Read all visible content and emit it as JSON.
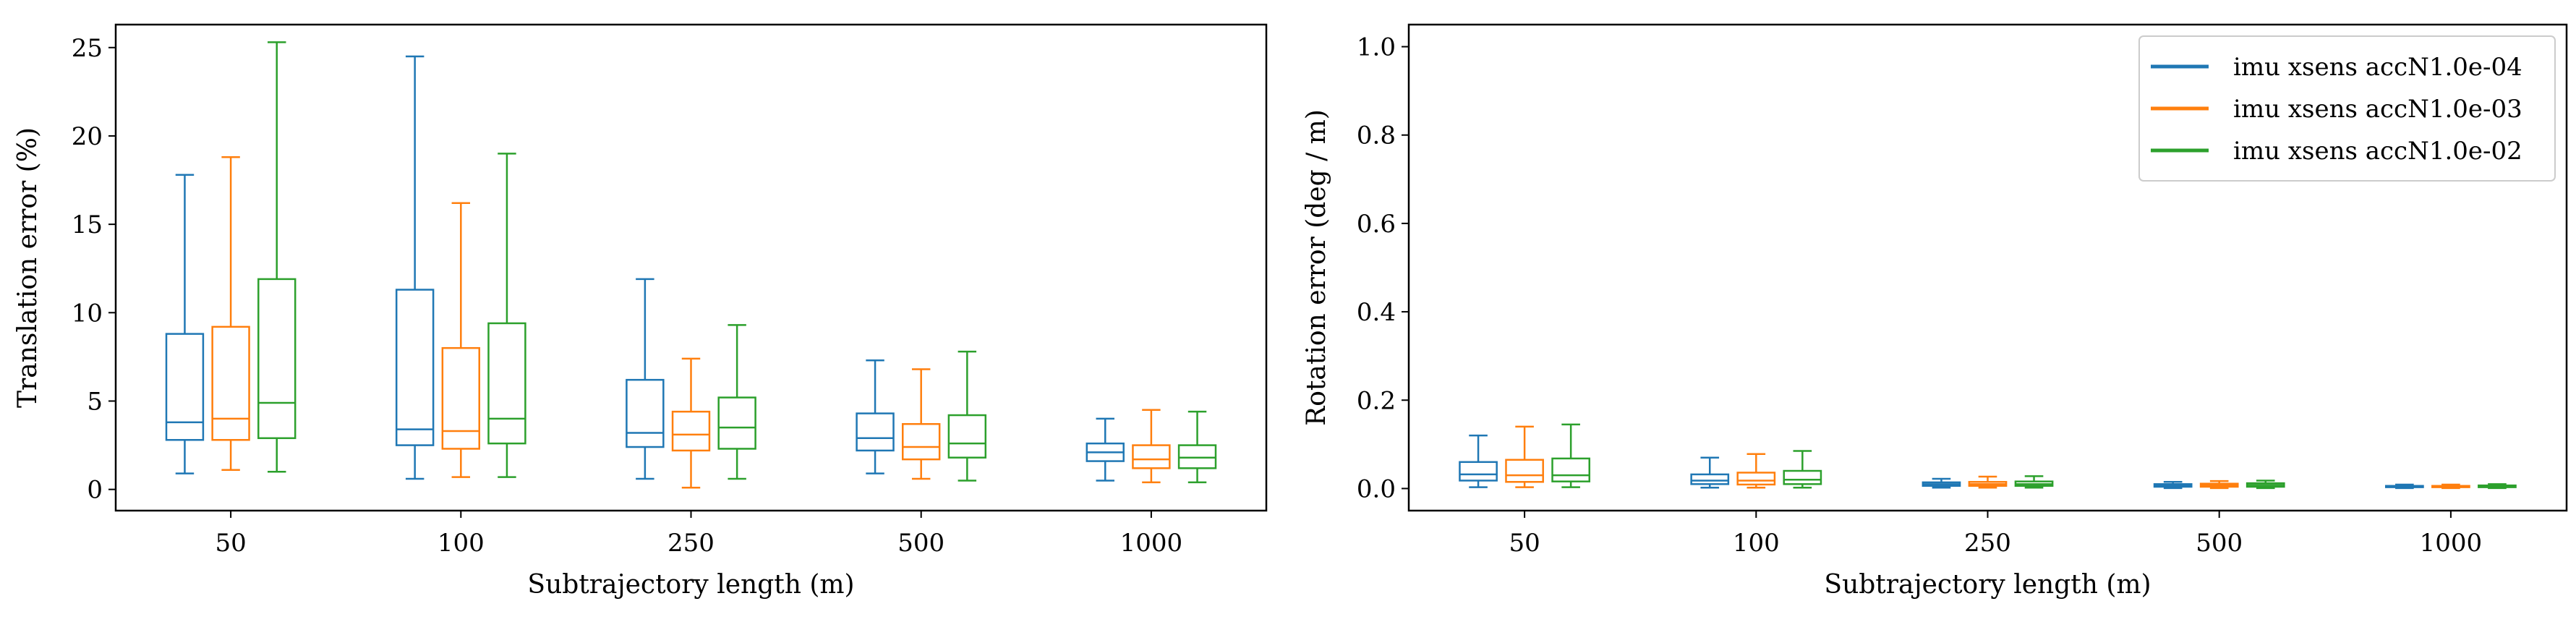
{
  "colors": {
    "series1": "#1f77b4",
    "series2": "#ff7f0e",
    "series3": "#2ca02c"
  },
  "chart_data": [
    {
      "type": "box",
      "xlabel": "Subtrajectory length (m)",
      "ylabel": "Translation error (%)",
      "categories": [
        "50",
        "100",
        "250",
        "500",
        "1000"
      ],
      "ylim": [
        -1.2,
        26.3
      ],
      "yticks": [
        0,
        5,
        10,
        15,
        20,
        25
      ],
      "ytick_labels": [
        "0",
        "5",
        "10",
        "15",
        "20",
        "25"
      ],
      "grid": false,
      "legend": false,
      "series": [
        {
          "name": "imu xsens accN1.0e-04",
          "boxes": [
            {
              "min": 0.9,
              "q1": 2.8,
              "median": 3.8,
              "q3": 8.8,
              "max": 17.8
            },
            {
              "min": 0.6,
              "q1": 2.5,
              "median": 3.4,
              "q3": 11.3,
              "max": 24.5
            },
            {
              "min": 0.6,
              "q1": 2.4,
              "median": 3.2,
              "q3": 6.2,
              "max": 11.9
            },
            {
              "min": 0.9,
              "q1": 2.2,
              "median": 2.9,
              "q3": 4.3,
              "max": 7.3
            },
            {
              "min": 0.5,
              "q1": 1.6,
              "median": 2.1,
              "q3": 2.6,
              "max": 4.0
            }
          ]
        },
        {
          "name": "imu xsens accN1.0e-03",
          "boxes": [
            {
              "min": 1.1,
              "q1": 2.8,
              "median": 4.0,
              "q3": 9.2,
              "max": 18.8
            },
            {
              "min": 0.7,
              "q1": 2.3,
              "median": 3.3,
              "q3": 8.0,
              "max": 16.2
            },
            {
              "min": 0.1,
              "q1": 2.2,
              "median": 3.1,
              "q3": 4.4,
              "max": 7.4
            },
            {
              "min": 0.6,
              "q1": 1.7,
              "median": 2.4,
              "q3": 3.7,
              "max": 6.8
            },
            {
              "min": 0.4,
              "q1": 1.2,
              "median": 1.7,
              "q3": 2.5,
              "max": 4.5
            }
          ]
        },
        {
          "name": "imu xsens accN1.0e-02",
          "boxes": [
            {
              "min": 1.0,
              "q1": 2.9,
              "median": 4.9,
              "q3": 11.9,
              "max": 25.3
            },
            {
              "min": 0.7,
              "q1": 2.6,
              "median": 4.0,
              "q3": 9.4,
              "max": 19.0
            },
            {
              "min": 0.6,
              "q1": 2.3,
              "median": 3.5,
              "q3": 5.2,
              "max": 9.3
            },
            {
              "min": 0.5,
              "q1": 1.8,
              "median": 2.6,
              "q3": 4.2,
              "max": 7.8
            },
            {
              "min": 0.4,
              "q1": 1.2,
              "median": 1.8,
              "q3": 2.5,
              "max": 4.4
            }
          ]
        }
      ]
    },
    {
      "type": "box",
      "xlabel": "Subtrajectory length (m)",
      "ylabel": "Rotation error (deg / m)",
      "categories": [
        "50",
        "100",
        "250",
        "500",
        "1000"
      ],
      "ylim": [
        -0.05,
        1.05
      ],
      "yticks": [
        0.0,
        0.2,
        0.4,
        0.6,
        0.8,
        1.0
      ],
      "ytick_labels": [
        "0.0",
        "0.2",
        "0.4",
        "0.6",
        "0.8",
        "1.0"
      ],
      "grid": false,
      "legend": true,
      "legend_position": "top-right",
      "series": [
        {
          "name": "imu xsens accN1.0e-04",
          "boxes": [
            {
              "min": 0.003,
              "q1": 0.018,
              "median": 0.032,
              "q3": 0.06,
              "max": 0.12
            },
            {
              "min": 0.002,
              "q1": 0.01,
              "median": 0.018,
              "q3": 0.032,
              "max": 0.07
            },
            {
              "min": 0.002,
              "q1": 0.006,
              "median": 0.01,
              "q3": 0.014,
              "max": 0.022
            },
            {
              "min": 0.001,
              "q1": 0.004,
              "median": 0.007,
              "q3": 0.01,
              "max": 0.015
            },
            {
              "min": 0.001,
              "q1": 0.003,
              "median": 0.004,
              "q3": 0.006,
              "max": 0.009
            }
          ]
        },
        {
          "name": "imu xsens accN1.0e-03",
          "boxes": [
            {
              "min": 0.003,
              "q1": 0.015,
              "median": 0.03,
              "q3": 0.065,
              "max": 0.14
            },
            {
              "min": 0.002,
              "q1": 0.009,
              "median": 0.018,
              "q3": 0.036,
              "max": 0.078
            },
            {
              "min": 0.002,
              "q1": 0.006,
              "median": 0.01,
              "q3": 0.015,
              "max": 0.027
            },
            {
              "min": 0.001,
              "q1": 0.004,
              "median": 0.007,
              "q3": 0.011,
              "max": 0.017
            },
            {
              "min": 0.001,
              "q1": 0.003,
              "median": 0.004,
              "q3": 0.006,
              "max": 0.009
            }
          ]
        },
        {
          "name": "imu xsens accN1.0e-02",
          "boxes": [
            {
              "min": 0.003,
              "q1": 0.016,
              "median": 0.03,
              "q3": 0.068,
              "max": 0.145
            },
            {
              "min": 0.002,
              "q1": 0.01,
              "median": 0.02,
              "q3": 0.04,
              "max": 0.085
            },
            {
              "min": 0.002,
              "q1": 0.006,
              "median": 0.01,
              "q3": 0.016,
              "max": 0.028
            },
            {
              "min": 0.001,
              "q1": 0.004,
              "median": 0.008,
              "q3": 0.012,
              "max": 0.018
            },
            {
              "min": 0.001,
              "q1": 0.003,
              "median": 0.005,
              "q3": 0.007,
              "max": 0.01
            }
          ]
        }
      ]
    }
  ]
}
